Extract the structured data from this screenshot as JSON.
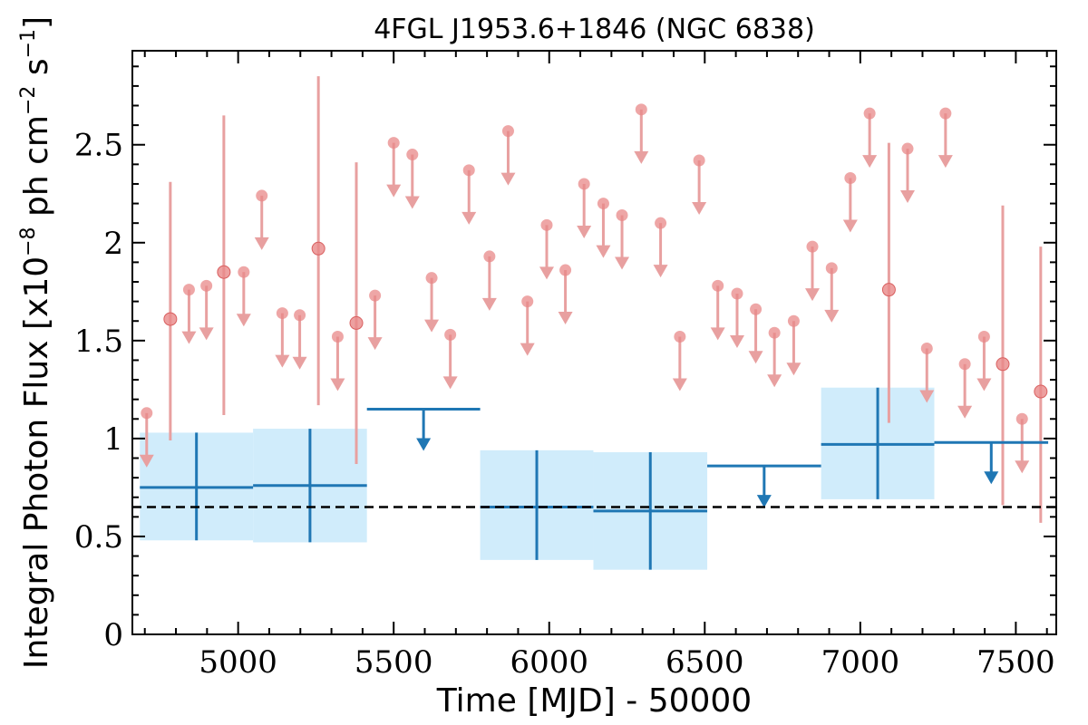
{
  "chart_data": {
    "type": "scatter",
    "title": "4FGL J1953.6+1846 (NGC 6838)",
    "xlabel": "Time [MJD] - 50000",
    "ylabel_parts": [
      "Integral Photon Flux [x10",
      "−8",
      " ph cm",
      "−2",
      " s",
      "−1",
      "]"
    ],
    "xlim": [
      4660,
      7630
    ],
    "ylim": [
      0,
      2.98
    ],
    "x_ticks": [
      5000,
      5500,
      6000,
      6500,
      7000,
      7500
    ],
    "x_tick_labels": [
      "5000",
      "5500",
      "6000",
      "6500",
      "7000",
      "7500"
    ],
    "y_ticks": [
      0,
      0.5,
      1,
      1.5,
      2,
      2.5
    ],
    "y_tick_labels": [
      "0",
      "0.5",
      "1",
      "1.5",
      "2",
      "2.5"
    ],
    "reference_level": 0.65,
    "colors": {
      "fine_bins": "#e8a0a0",
      "fine_marker": "#e88888",
      "coarse_bins": "#1f77b4",
      "coarse_band": "#d0ecfb",
      "reference_line": "#000000"
    },
    "series": [
      {
        "points": [
          {
            "x": 4706,
            "y": 1.13,
            "ul": true
          },
          {
            "x": 4782,
            "y": 1.61,
            "ul": false,
            "lo": 0.99,
            "hi": 2.31
          },
          {
            "x": 4842,
            "y": 1.76,
            "ul": true
          },
          {
            "x": 4898,
            "y": 1.78,
            "ul": true
          },
          {
            "x": 4954,
            "y": 1.85,
            "ul": false,
            "lo": 1.12,
            "hi": 2.65
          },
          {
            "x": 5018,
            "y": 1.85,
            "ul": true
          },
          {
            "x": 5076,
            "y": 2.24,
            "ul": true
          },
          {
            "x": 5142,
            "y": 1.64,
            "ul": true
          },
          {
            "x": 5198,
            "y": 1.63,
            "ul": true
          },
          {
            "x": 5258,
            "y": 1.97,
            "ul": false,
            "lo": 1.17,
            "hi": 2.85
          },
          {
            "x": 5320,
            "y": 1.52,
            "ul": true
          },
          {
            "x": 5380,
            "y": 1.59,
            "ul": false,
            "lo": 0.87,
            "hi": 2.41
          },
          {
            "x": 5440,
            "y": 1.73,
            "ul": true
          },
          {
            "x": 5500,
            "y": 2.51,
            "ul": true
          },
          {
            "x": 5560,
            "y": 2.45,
            "ul": true
          },
          {
            "x": 5622,
            "y": 1.82,
            "ul": true
          },
          {
            "x": 5682,
            "y": 1.53,
            "ul": true
          },
          {
            "x": 5742,
            "y": 2.37,
            "ul": true
          },
          {
            "x": 5808,
            "y": 1.93,
            "ul": true
          },
          {
            "x": 5868,
            "y": 2.57,
            "ul": true
          },
          {
            "x": 5930,
            "y": 1.7,
            "ul": true
          },
          {
            "x": 5992,
            "y": 2.09,
            "ul": true
          },
          {
            "x": 6052,
            "y": 1.86,
            "ul": true
          },
          {
            "x": 6112,
            "y": 2.3,
            "ul": true
          },
          {
            "x": 6174,
            "y": 2.2,
            "ul": true
          },
          {
            "x": 6234,
            "y": 2.14,
            "ul": true
          },
          {
            "x": 6296,
            "y": 2.68,
            "ul": true
          },
          {
            "x": 6358,
            "y": 2.1,
            "ul": true
          },
          {
            "x": 6420,
            "y": 1.52,
            "ul": true
          },
          {
            "x": 6482,
            "y": 2.42,
            "ul": true
          },
          {
            "x": 6542,
            "y": 1.78,
            "ul": true
          },
          {
            "x": 6604,
            "y": 1.74,
            "ul": true
          },
          {
            "x": 6664,
            "y": 1.66,
            "ul": true
          },
          {
            "x": 6724,
            "y": 1.54,
            "ul": true
          },
          {
            "x": 6786,
            "y": 1.6,
            "ul": true
          },
          {
            "x": 6846,
            "y": 1.98,
            "ul": true
          },
          {
            "x": 6908,
            "y": 1.87,
            "ul": true
          },
          {
            "x": 6968,
            "y": 2.33,
            "ul": true
          },
          {
            "x": 7030,
            "y": 2.66,
            "ul": true
          },
          {
            "x": 7092,
            "y": 1.76,
            "ul": false,
            "lo": 1.08,
            "hi": 2.51
          },
          {
            "x": 7152,
            "y": 2.48,
            "ul": true
          },
          {
            "x": 7214,
            "y": 1.46,
            "ul": true
          },
          {
            "x": 7274,
            "y": 2.66,
            "ul": true
          },
          {
            "x": 7336,
            "y": 1.38,
            "ul": true
          },
          {
            "x": 7398,
            "y": 1.52,
            "ul": true
          },
          {
            "x": 7458,
            "y": 1.38,
            "ul": false,
            "lo": 0.66,
            "hi": 2.19
          },
          {
            "x": 7520,
            "y": 1.1,
            "ul": true
          },
          {
            "x": 7580,
            "y": 1.24,
            "ul": false,
            "lo": 0.57,
            "hi": 1.98
          }
        ]
      },
      {
        "points": [
          {
            "x0": 4684,
            "x1": 5048,
            "y": 0.75,
            "lo": 0.48,
            "hi": 1.03,
            "ul": false
          },
          {
            "x0": 5048,
            "x1": 5414,
            "y": 0.76,
            "lo": 0.47,
            "hi": 1.05,
            "ul": false
          },
          {
            "x0": 5414,
            "x1": 5778,
            "y": 1.15,
            "ul": true
          },
          {
            "x0": 5778,
            "x1": 6142,
            "y": 0.65,
            "lo": 0.38,
            "hi": 0.94,
            "ul": false
          },
          {
            "x0": 6142,
            "x1": 6508,
            "y": 0.63,
            "lo": 0.33,
            "hi": 0.93,
            "ul": false
          },
          {
            "x0": 6508,
            "x1": 6874,
            "y": 0.86,
            "ul": true
          },
          {
            "x0": 6874,
            "x1": 7238,
            "y": 0.97,
            "lo": 0.69,
            "hi": 1.26,
            "ul": false
          },
          {
            "x0": 7238,
            "x1": 7604,
            "y": 0.98,
            "ul": true
          }
        ]
      }
    ]
  }
}
